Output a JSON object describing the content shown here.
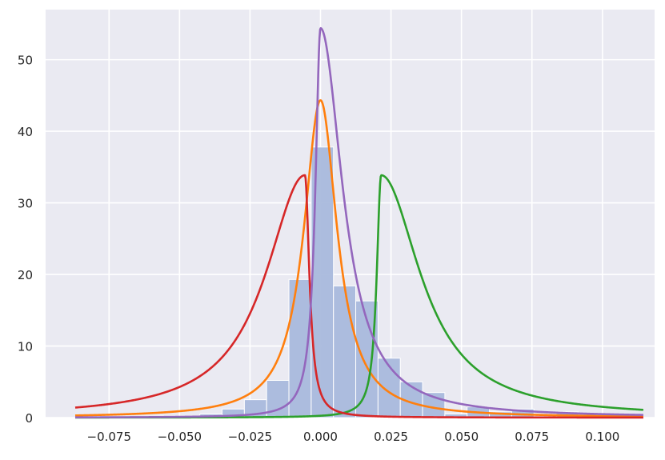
{
  "chart_data": {
    "type": "area",
    "title": "",
    "xlabel": "",
    "ylabel": "",
    "xlim": [
      -0.0975,
      0.1185
    ],
    "ylim": [
      0,
      57
    ],
    "grid": true,
    "background_color": "#eaeaf2",
    "grid_color": "#ffffff",
    "xticks": [
      -0.075,
      -0.05,
      -0.025,
      0.0,
      0.025,
      0.05,
      0.075,
      0.1
    ],
    "xtick_labels": [
      "−0.075",
      "−0.050",
      "−0.025",
      "0.000",
      "0.025",
      "0.050",
      "0.075",
      "0.100"
    ],
    "yticks": [
      0,
      10,
      20,
      30,
      40,
      50
    ],
    "ytick_labels": [
      "0",
      "10",
      "20",
      "30",
      "40",
      "50"
    ],
    "histogram": {
      "color": "#a9b9dc",
      "bin_width": 0.0079,
      "bin_edges": [
        -0.0428,
        -0.0349,
        -0.027,
        -0.0191,
        -0.0112,
        -0.0033,
        0.0046,
        0.0125,
        0.0204,
        0.0283,
        0.0362,
        0.0441,
        0.052,
        0.0599,
        0.0678,
        0.0757,
        0.0836,
        0.0915,
        0.0994
      ],
      "counts": [
        0.5,
        1.2,
        2.5,
        5.2,
        19.3,
        37.8,
        18.4,
        16.3,
        8.3,
        5.0,
        3.5,
        0.5,
        1.5,
        0.8,
        1.2,
        0.0,
        0.8,
        0.0
      ]
    },
    "x_range": [
      -0.087,
      0.1145
    ],
    "series": [
      {
        "color": "#ff7f0e",
        "dist": "cauchy",
        "loc": 0.0,
        "scale": 0.00718,
        "linewidth": 2.6
      },
      {
        "color": "#2ca02c",
        "dist": "skewcauchy",
        "loc": 0.0215,
        "scale": 0.0094,
        "skew": 0.8,
        "linewidth": 2.6
      },
      {
        "color": "#d62728",
        "dist": "skewcauchy",
        "loc": -0.0055,
        "scale": 0.0094,
        "skew": -0.8,
        "linewidth": 2.6
      },
      {
        "color": "#9467bd",
        "dist": "asym_cauchy",
        "loc": 0.0,
        "scale_left": 0.0022,
        "scale_right": 0.0095,
        "linewidth": 2.6
      }
    ]
  }
}
